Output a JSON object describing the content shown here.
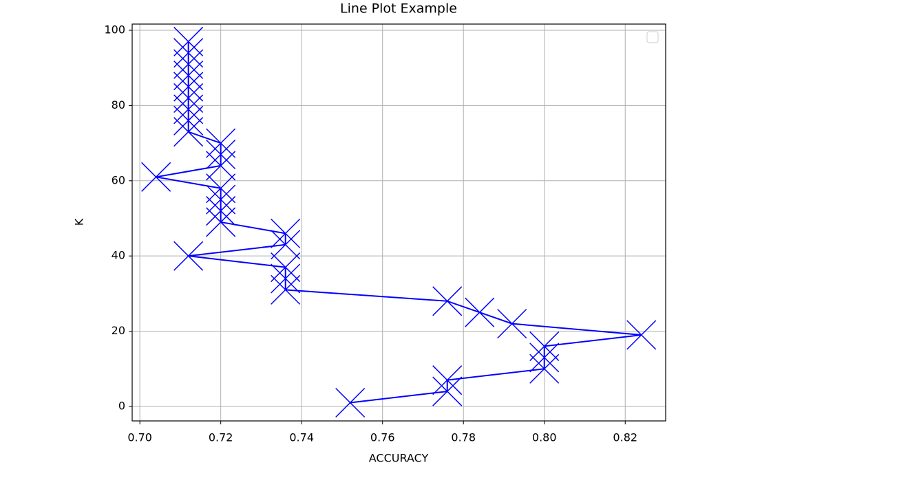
{
  "chart_data": {
    "type": "line",
    "title": "Line Plot Example",
    "x_label": "ACCURACY",
    "y_label": "K",
    "x": [
      0.752,
      0.776,
      0.776,
      0.8,
      0.8,
      0.8,
      0.824,
      0.792,
      0.784,
      0.776,
      0.736,
      0.736,
      0.736,
      0.712,
      0.736,
      0.736,
      0.72,
      0.72,
      0.72,
      0.72,
      0.704,
      0.72,
      0.72,
      0.72,
      0.712,
      0.712,
      0.712,
      0.712,
      0.712,
      0.712,
      0.712,
      0.712,
      0.712
    ],
    "values": [
      1,
      4,
      7,
      10,
      13,
      16,
      19,
      22,
      25,
      28,
      31,
      34,
      37,
      40,
      43,
      46,
      49,
      52,
      55,
      58,
      61,
      64,
      67,
      70,
      73,
      76,
      79,
      82,
      85,
      88,
      91,
      94,
      97
    ],
    "color": "#0000ff",
    "marker": "x",
    "xlim": [
      0.6981,
      0.83
    ],
    "ylim": [
      -3.85,
      101.65
    ],
    "xticks": [
      {
        "value": 0.7,
        "label": "0.70"
      },
      {
        "value": 0.72,
        "label": "0.72"
      },
      {
        "value": 0.74,
        "label": "0.74"
      },
      {
        "value": 0.76,
        "label": "0.76"
      },
      {
        "value": 0.78,
        "label": "0.78"
      },
      {
        "value": 0.8,
        "label": "0.80"
      },
      {
        "value": 0.82,
        "label": "0.82"
      }
    ],
    "yticks": [
      0,
      20,
      40,
      60,
      80,
      100
    ],
    "grid": true,
    "legend": "upper right"
  }
}
